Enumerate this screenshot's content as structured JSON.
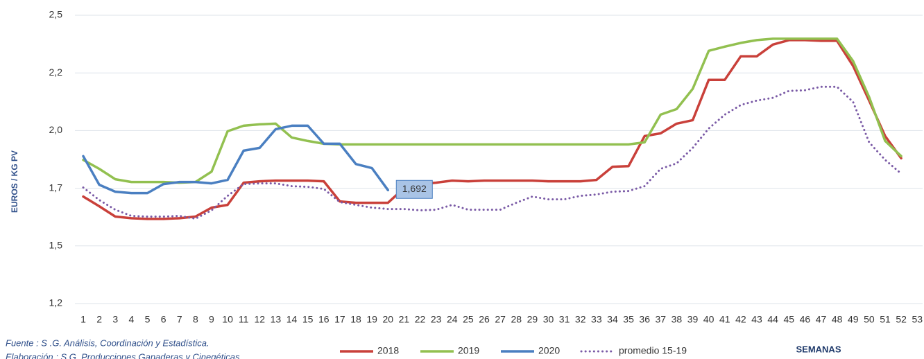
{
  "chart_data": {
    "type": "line",
    "y_label": "EUROS / KG PV",
    "x_label": "SEMANAS",
    "source": "Fuente :  S .G. Análisis, Coordinación y Estadística.",
    "credit": "Elaboración : S.G. Producciones Ganaderas y Cinegéticas",
    "categories": [
      "1",
      "2",
      "3",
      "4",
      "5",
      "6",
      "7",
      "8",
      "9",
      "10",
      "11",
      "12",
      "13",
      "14",
      "15",
      "16",
      "17",
      "18",
      "19",
      "20",
      "21",
      "22",
      "23",
      "24",
      "25",
      "26",
      "27",
      "28",
      "29",
      "30",
      "31",
      "32",
      "33",
      "34",
      "35",
      "36",
      "37",
      "38",
      "39",
      "40",
      "41",
      "42",
      "43",
      "44",
      "45",
      "46",
      "47",
      "48",
      "49",
      "50",
      "51",
      "52",
      "53"
    ],
    "ylim": [
      1.2,
      2.45
    ],
    "yticks": [
      {
        "value": 1.2,
        "label": "1,2"
      },
      {
        "value": 1.45,
        "label": "1,5"
      },
      {
        "value": 1.7,
        "label": "1,7"
      },
      {
        "value": 1.95,
        "label": "2,0"
      },
      {
        "value": 2.2,
        "label": "2,2"
      },
      {
        "value": 2.45,
        "label": "2,5"
      }
    ],
    "grid": true,
    "legend": "bottom",
    "series": [
      {
        "name": "2018",
        "color": "#c9403a",
        "style": "solid",
        "values": [
          1.664,
          1.622,
          1.577,
          1.57,
          1.567,
          1.567,
          1.57,
          1.577,
          1.616,
          1.628,
          1.724,
          1.73,
          1.733,
          1.733,
          1.733,
          1.73,
          1.643,
          1.637,
          1.637,
          1.637,
          1.7,
          1.718,
          1.724,
          1.733,
          1.73,
          1.733,
          1.733,
          1.733,
          1.733,
          1.73,
          1.73,
          1.73,
          1.736,
          1.793,
          1.796,
          1.926,
          1.938,
          1.98,
          1.995,
          2.17,
          2.17,
          2.272,
          2.272,
          2.323,
          2.342,
          2.342,
          2.339,
          2.339,
          2.23,
          2.08,
          1.926,
          1.83,
          null
        ]
      },
      {
        "name": "2019",
        "color": "#92c050",
        "style": "solid",
        "values": [
          1.823,
          1.784,
          1.739,
          1.727,
          1.727,
          1.727,
          1.724,
          1.727,
          1.772,
          1.947,
          1.971,
          1.977,
          1.98,
          1.92,
          1.905,
          1.893,
          1.89,
          1.89,
          1.89,
          1.89,
          1.89,
          1.89,
          1.89,
          1.89,
          1.89,
          1.89,
          1.89,
          1.89,
          1.89,
          1.89,
          1.89,
          1.89,
          1.89,
          1.89,
          1.89,
          1.899,
          2.019,
          2.043,
          2.131,
          2.296,
          2.314,
          2.33,
          2.342,
          2.348,
          2.348,
          2.348,
          2.348,
          2.348,
          2.251,
          2.095,
          1.905,
          1.839,
          null
        ]
      },
      {
        "name": "2020",
        "color": "#4a7fc1",
        "style": "solid",
        "values": [
          1.839,
          1.715,
          1.685,
          1.679,
          1.679,
          1.718,
          1.727,
          1.727,
          1.721,
          1.736,
          1.863,
          1.875,
          1.956,
          1.971,
          1.971,
          1.893,
          1.893,
          1.805,
          1.787,
          1.692,
          null,
          null,
          null,
          null,
          null,
          null,
          null,
          null,
          null,
          null,
          null,
          null,
          null,
          null,
          null,
          null,
          null,
          null,
          null,
          null,
          null,
          null,
          null,
          null,
          null,
          null,
          null,
          null,
          null,
          null,
          null,
          null,
          null
        ],
        "value_labels": [
          null,
          null,
          null,
          null,
          null,
          null,
          null,
          null,
          null,
          null,
          null,
          null,
          null,
          null,
          null,
          null,
          null,
          null,
          null,
          "1,692",
          null,
          null,
          null,
          null,
          null,
          null,
          null,
          null,
          null,
          null,
          null,
          null,
          null,
          null,
          null,
          null,
          null,
          null,
          null,
          null,
          null,
          null,
          null,
          null,
          null,
          null,
          null,
          null,
          null,
          null,
          null,
          null,
          null
        ]
      },
      {
        "name": "promedio 15-19",
        "color": "#7a5aa6",
        "style": "dotted",
        "values": [
          1.703,
          1.649,
          1.607,
          1.58,
          1.577,
          1.577,
          1.58,
          1.568,
          1.604,
          1.667,
          1.718,
          1.721,
          1.721,
          1.709,
          1.706,
          1.697,
          1.64,
          1.628,
          1.616,
          1.61,
          1.61,
          1.604,
          1.607,
          1.628,
          1.607,
          1.607,
          1.607,
          1.637,
          1.664,
          1.652,
          1.652,
          1.667,
          1.673,
          1.685,
          1.688,
          1.709,
          1.784,
          1.808,
          1.875,
          1.959,
          2.019,
          2.061,
          2.08,
          2.092,
          2.122,
          2.125,
          2.14,
          2.14,
          2.074,
          1.899,
          1.823,
          1.763,
          null
        ]
      }
    ]
  }
}
